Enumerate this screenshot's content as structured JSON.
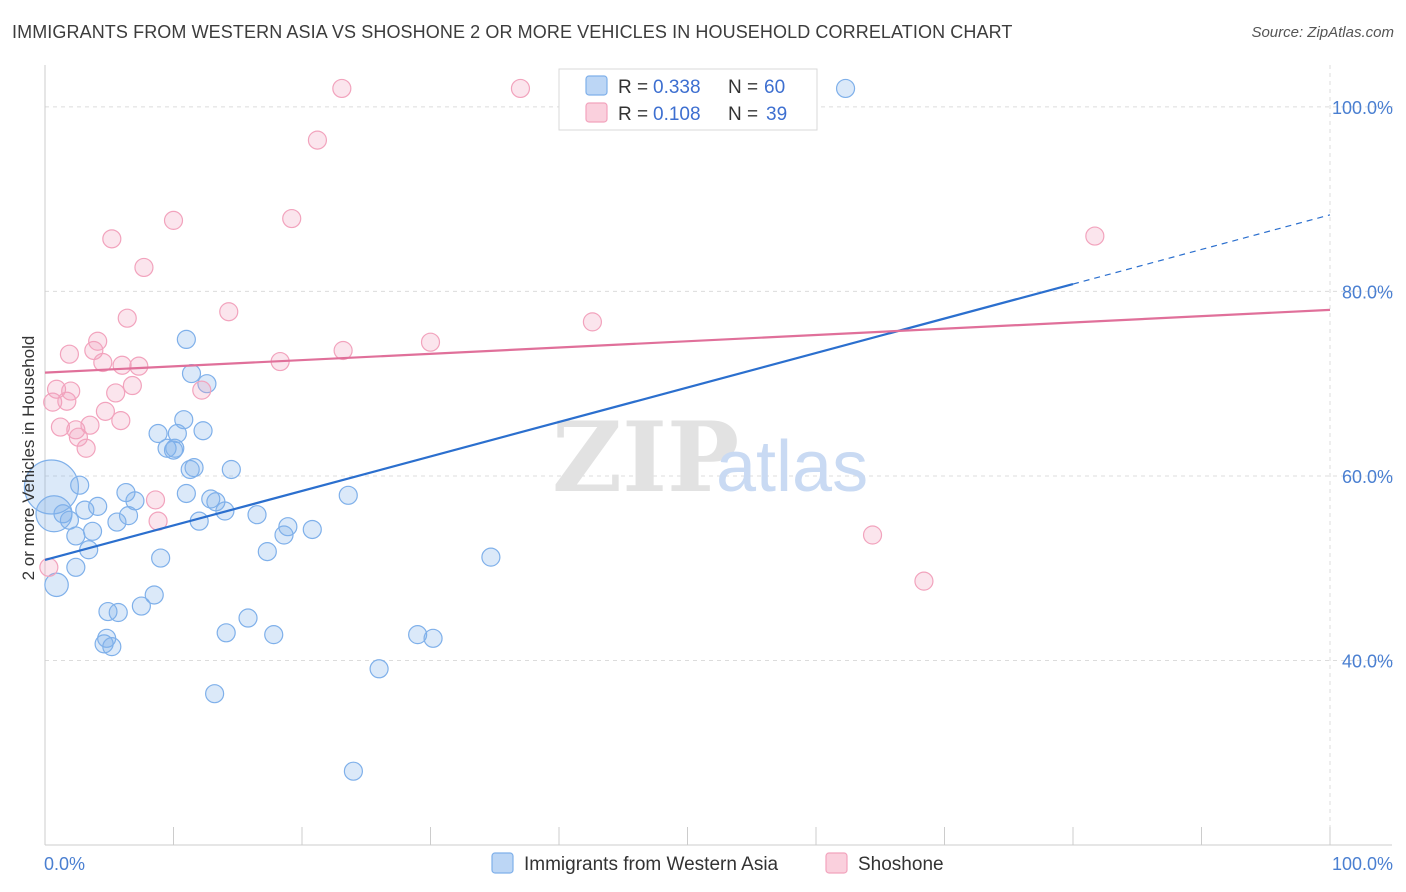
{
  "title": "IMMIGRANTS FROM WESTERN ASIA VS SHOSHONE 2 OR MORE VEHICLES IN HOUSEHOLD CORRELATION CHART",
  "source": "Source: ZipAtlas.com",
  "watermark": {
    "zip": "ZIP",
    "atlas": "atlas"
  },
  "colors": {
    "blue": "#7fb0ea",
    "blue_line": "#2b6fce",
    "pink": "#f2a3bd",
    "pink_line": "#e0709a",
    "axis_text": "#4a7fd1",
    "grid": "#dcdcdc"
  },
  "legend": {
    "rows": [
      {
        "r_label": "R =",
        "r_value": "0.338",
        "n_label": "N =",
        "n_value": "60"
      },
      {
        "r_label": "R =",
        "r_value": "0.108",
        "n_label": "N =",
        "n_value": "39"
      }
    ]
  },
  "chart_data": {
    "type": "scatter",
    "ylabel": "2 or more Vehicles in Household",
    "xlim": [
      0,
      100
    ],
    "ylim": [
      20,
      104
    ],
    "x_tick_labels": [
      "0.0%",
      "100.0%"
    ],
    "y_ticks": [
      40,
      60,
      80,
      100
    ],
    "y_tick_labels": [
      "40.0%",
      "60.0%",
      "80.0%",
      "100.0%"
    ],
    "grid": true,
    "legend_position": "top-center",
    "series": [
      {
        "name": "Immigrants from Western Asia",
        "color": "#7fb0ea",
        "trend": {
          "x": [
            0,
            80
          ],
          "y": [
            50.9,
            80.8
          ],
          "dashed_to": [
            100,
            88.3
          ]
        },
        "points": [
          [
            0.5,
            58.8,
            3
          ],
          [
            0.7,
            55.9,
            2
          ],
          [
            0.9,
            48.2,
            1.3
          ],
          [
            1.4,
            55.9,
            1
          ],
          [
            1.9,
            55.2,
            1
          ],
          [
            2.4,
            53.5,
            1
          ],
          [
            2.4,
            50.1,
            1
          ],
          [
            2.7,
            59.0,
            1
          ],
          [
            3.1,
            56.3,
            1
          ],
          [
            3.4,
            52.0,
            1
          ],
          [
            3.7,
            54.0,
            1
          ],
          [
            4.1,
            56.7,
            1
          ],
          [
            4.6,
            41.8,
            1
          ],
          [
            4.8,
            42.4,
            1
          ],
          [
            4.9,
            45.3,
            1
          ],
          [
            5.2,
            41.5,
            1
          ],
          [
            5.7,
            45.2,
            1
          ],
          [
            5.6,
            55.0,
            1
          ],
          [
            6.3,
            58.2,
            1
          ],
          [
            6.5,
            55.7,
            1
          ],
          [
            7.0,
            57.3,
            1
          ],
          [
            7.5,
            45.9,
            1
          ],
          [
            8.5,
            47.1,
            1
          ],
          [
            8.8,
            64.6,
            1
          ],
          [
            9.0,
            51.1,
            1
          ],
          [
            9.5,
            63.0,
            1
          ],
          [
            10.1,
            63.0,
            1
          ],
          [
            10.3,
            64.6,
            1
          ],
          [
            10.0,
            62.8,
            1
          ],
          [
            10.8,
            66.1,
            1
          ],
          [
            11.0,
            58.1,
            1
          ],
          [
            11.3,
            60.7,
            1
          ],
          [
            11.0,
            74.8,
            1
          ],
          [
            11.4,
            71.1,
            1
          ],
          [
            11.6,
            60.9,
            1
          ],
          [
            12.0,
            55.1,
            1
          ],
          [
            12.3,
            64.9,
            1
          ],
          [
            12.6,
            70.0,
            1
          ],
          [
            12.9,
            57.5,
            1
          ],
          [
            13.3,
            57.2,
            1
          ],
          [
            14.0,
            56.2,
            1
          ],
          [
            14.1,
            43.0,
            1
          ],
          [
            13.2,
            36.4,
            1
          ],
          [
            14.5,
            60.7,
            1
          ],
          [
            15.8,
            44.6,
            1
          ],
          [
            16.5,
            55.8,
            1
          ],
          [
            17.3,
            51.8,
            1
          ],
          [
            17.8,
            42.8,
            1
          ],
          [
            18.6,
            53.6,
            1
          ],
          [
            18.9,
            54.5,
            1
          ],
          [
            20.8,
            54.2,
            1
          ],
          [
            23.6,
            57.9,
            1
          ],
          [
            24.0,
            28.0,
            1
          ],
          [
            26.0,
            39.1,
            1
          ],
          [
            29.0,
            42.8,
            1
          ],
          [
            30.2,
            42.4,
            1
          ],
          [
            34.7,
            51.2,
            1
          ],
          [
            42.2,
            100.1,
            1
          ],
          [
            46.3,
            102.0,
            1
          ],
          [
            62.3,
            102.0,
            1
          ]
        ]
      },
      {
        "name": "Shoshone",
        "color": "#f2a3bd",
        "trend": {
          "x": [
            0,
            100
          ],
          "y": [
            71.2,
            78.0
          ]
        },
        "points": [
          [
            0.3,
            50.1,
            1
          ],
          [
            0.6,
            68.0,
            1
          ],
          [
            0.9,
            69.4,
            1
          ],
          [
            1.2,
            65.3,
            1
          ],
          [
            1.7,
            68.1,
            1
          ],
          [
            1.9,
            73.2,
            1
          ],
          [
            2.0,
            69.2,
            1
          ],
          [
            2.4,
            65.0,
            1
          ],
          [
            2.6,
            64.2,
            1
          ],
          [
            3.2,
            63.0,
            1
          ],
          [
            3.5,
            65.5,
            1
          ],
          [
            3.8,
            73.6,
            1
          ],
          [
            4.1,
            74.6,
            1
          ],
          [
            4.5,
            72.3,
            1
          ],
          [
            4.7,
            67.0,
            1
          ],
          [
            5.2,
            85.7,
            1
          ],
          [
            5.5,
            69.0,
            1
          ],
          [
            5.9,
            66.0,
            1
          ],
          [
            6.0,
            72.0,
            1
          ],
          [
            6.4,
            77.1,
            1
          ],
          [
            6.8,
            69.8,
            1
          ],
          [
            7.3,
            71.9,
            1
          ],
          [
            7.7,
            82.6,
            1
          ],
          [
            8.6,
            57.4,
            1
          ],
          [
            8.8,
            55.1,
            1
          ],
          [
            10.0,
            87.7,
            1
          ],
          [
            12.2,
            69.3,
            1
          ],
          [
            14.3,
            77.8,
            1
          ],
          [
            18.3,
            72.4,
            1
          ],
          [
            21.2,
            96.4,
            1
          ],
          [
            19.2,
            87.9,
            1
          ],
          [
            23.2,
            73.6,
            1
          ],
          [
            23.1,
            102.0,
            1
          ],
          [
            30.0,
            74.5,
            1
          ],
          [
            37.0,
            102.0,
            1
          ],
          [
            42.6,
            76.7,
            1
          ],
          [
            64.4,
            53.6,
            1
          ],
          [
            68.4,
            48.6,
            1
          ],
          [
            81.7,
            86.0,
            1
          ]
        ]
      }
    ]
  }
}
